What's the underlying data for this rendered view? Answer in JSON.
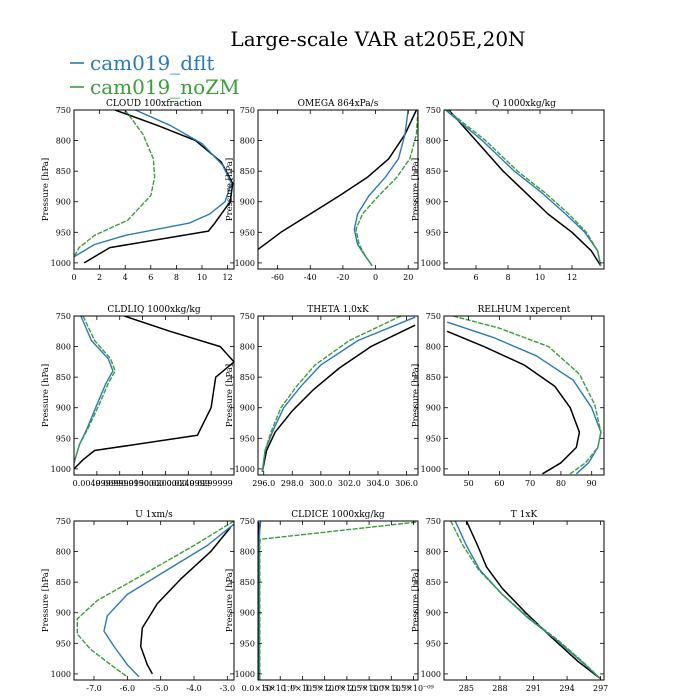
{
  "figure": {
    "title": "Large-scale VAR at205E,20N",
    "legend": [
      {
        "label": "cam019_dflt",
        "color": "#2a7ab8"
      },
      {
        "label": "cam019_noZM",
        "color": "#3a9e3a"
      }
    ],
    "reference_color": "#000000"
  },
  "chart_data": [
    {
      "type": "line",
      "title": "CLOUD  100xfraction",
      "ylabel": "Pressure [hPa]",
      "xlim": [
        0,
        12.5
      ],
      "ylim": [
        1010,
        750
      ],
      "xticks": [
        0,
        2,
        4,
        6,
        8,
        10,
        12
      ],
      "xtick_labels": [
        "0",
        "2",
        "4",
        "6",
        "8",
        "10",
        "12"
      ],
      "yticks": [
        750,
        800,
        850,
        900,
        950,
        1000
      ],
      "series": [
        {
          "name": "",
          "color": "#000000",
          "dashed": false,
          "x": [
            3.2,
            6.5,
            9.5,
            11.5,
            12.4,
            12.2,
            11.0,
            10.5,
            2.8,
            0.8
          ],
          "y": [
            750,
            775,
            800,
            835,
            870,
            900,
            935,
            948,
            975,
            1000
          ]
        },
        {
          "name": "cam019_dflt",
          "color": "#2a7ab8",
          "dashed": false,
          "x": [
            4.8,
            7.5,
            10.0,
            11.6,
            12.3,
            11.8,
            10.6,
            9.0,
            4.0,
            1.6,
            0.0
          ],
          "y": [
            750,
            775,
            805,
            840,
            870,
            900,
            920,
            935,
            955,
            970,
            990
          ]
        },
        {
          "name": "cam019_noZM",
          "color": "#3a9e3a",
          "dashed": true,
          "x": [
            4.0,
            5.4,
            6.2,
            6.3,
            6.0,
            4.2,
            1.6,
            0.4,
            0.0
          ],
          "y": [
            750,
            790,
            830,
            860,
            890,
            930,
            955,
            975,
            990
          ]
        }
      ]
    },
    {
      "type": "line",
      "title": "OMEGA  864xPa/s",
      "ylabel": "Pressure [hPa]",
      "xlim": [
        -72,
        26
      ],
      "ylim": [
        1010,
        750
      ],
      "xticks": [
        -60,
        -40,
        -20,
        0,
        20
      ],
      "xtick_labels": [
        "-60",
        "-40",
        "-20",
        "0",
        "20"
      ],
      "yticks": [
        750,
        800,
        850,
        900,
        950,
        1000
      ],
      "series": [
        {
          "name": "",
          "color": "#000000",
          "dashed": false,
          "x": [
            25,
            18,
            8,
            -5,
            -22,
            -40,
            -58,
            -72
          ],
          "y": [
            750,
            790,
            830,
            860,
            890,
            920,
            950,
            978
          ]
        },
        {
          "name": "cam019_dflt",
          "color": "#2a7ab8",
          "dashed": false,
          "x": [
            20,
            18,
            14,
            6,
            -4,
            -11,
            -13,
            -11,
            -6,
            -2
          ],
          "y": [
            750,
            790,
            830,
            860,
            890,
            920,
            945,
            970,
            990,
            1005
          ]
        },
        {
          "name": "cam019_noZM",
          "color": "#3a9e3a",
          "dashed": true,
          "x": [
            26,
            25,
            21,
            13,
            2,
            -8,
            -12,
            -10,
            -6,
            -2
          ],
          "y": [
            750,
            790,
            830,
            860,
            890,
            920,
            945,
            970,
            990,
            1005
          ]
        }
      ]
    },
    {
      "type": "line",
      "title": "Q  1000xkg/kg",
      "ylabel": "Pressure [hPa]",
      "xlim": [
        4,
        14
      ],
      "ylim": [
        1010,
        750
      ],
      "xticks": [
        6,
        8,
        10,
        12
      ],
      "xtick_labels": [
        "6",
        "8",
        "10",
        "12"
      ],
      "yticks": [
        750,
        800,
        850,
        900,
        950,
        1000
      ],
      "series": [
        {
          "name": "",
          "color": "#000000",
          "dashed": false,
          "x": [
            4.3,
            6.0,
            7.7,
            9.1,
            10.5,
            12.0,
            13.2,
            13.8
          ],
          "y": [
            750,
            800,
            850,
            885,
            920,
            950,
            980,
            1005
          ]
        },
        {
          "name": "cam019_dflt",
          "color": "#2a7ab8",
          "dashed": false,
          "x": [
            4.1,
            6.4,
            8.4,
            10.1,
            11.6,
            12.8,
            13.6,
            13.8
          ],
          "y": [
            750,
            800,
            850,
            885,
            920,
            950,
            980,
            1005
          ]
        },
        {
          "name": "cam019_noZM",
          "color": "#3a9e3a",
          "dashed": true,
          "x": [
            4.2,
            6.6,
            8.6,
            10.3,
            11.8,
            12.9,
            13.6,
            13.8
          ],
          "y": [
            750,
            800,
            850,
            885,
            920,
            950,
            980,
            1005
          ]
        }
      ]
    },
    {
      "type": "line",
      "title": "CLDLIQ  1000xkg/kg",
      "ylabel": "Pressure [hPa]",
      "xlim": [
        0,
        0.035
      ],
      "ylim": [
        1010,
        750
      ],
      "xticks": [
        0.005,
        0.01,
        0.015,
        0.02,
        0.025,
        0.03
      ],
      "xtick_labels": [
        "0.00499999",
        "0.00999999",
        "0.0150000",
        "0.0200000",
        "0.0249999",
        "0.0299999"
      ],
      "yticks": [
        750,
        800,
        850,
        900,
        950,
        1000
      ],
      "series": [
        {
          "name": "",
          "color": "#000000",
          "dashed": false,
          "x": [
            0.011,
            0.021,
            0.032,
            0.035,
            0.031,
            0.03,
            0.027,
            0.0045,
            0.002,
            0.0
          ],
          "y": [
            750,
            775,
            800,
            825,
            850,
            900,
            945,
            970,
            985,
            1000
          ]
        },
        {
          "name": "cam019_dflt",
          "color": "#2a7ab8",
          "dashed": false,
          "x": [
            0.0015,
            0.0038,
            0.0075,
            0.0085,
            0.007,
            0.005,
            0.0028,
            0.0012,
            0.0
          ],
          "y": [
            750,
            790,
            820,
            840,
            860,
            895,
            935,
            960,
            990
          ]
        },
        {
          "name": "cam019_noZM",
          "color": "#3a9e3a",
          "dashed": true,
          "x": [
            0.002,
            0.0045,
            0.008,
            0.009,
            0.0075,
            0.0055,
            0.003,
            0.0012,
            0.0
          ],
          "y": [
            750,
            790,
            820,
            840,
            860,
            895,
            935,
            960,
            990
          ]
        }
      ]
    },
    {
      "type": "line",
      "title": "THETA  1.0xK",
      "ylabel": "Pressure [hPa]",
      "xlim": [
        295.6,
        306.8
      ],
      "ylim": [
        1010,
        750
      ],
      "xticks": [
        296.0,
        298.0,
        300.0,
        302.0,
        304.0,
        306.0
      ],
      "xtick_labels": [
        "296.0",
        "298.0",
        "300.0",
        "302.0",
        "304.0",
        "306.0"
      ],
      "yticks": [
        750,
        800,
        850,
        900,
        950,
        1000
      ],
      "series": [
        {
          "name": "",
          "color": "#000000",
          "dashed": false,
          "x": [
            306.6,
            303.5,
            301.3,
            299.5,
            298.0,
            296.8,
            296.2,
            295.9
          ],
          "y": [
            765,
            800,
            835,
            870,
            905,
            940,
            970,
            1005
          ]
        },
        {
          "name": "cam019_dflt",
          "color": "#2a7ab8",
          "dashed": false,
          "x": [
            306.6,
            302.6,
            300.0,
            298.6,
            297.4,
            296.6,
            296.1,
            295.9
          ],
          "y": [
            752,
            790,
            830,
            865,
            900,
            940,
            970,
            1005
          ]
        },
        {
          "name": "cam019_noZM",
          "color": "#3a9e3a",
          "dashed": true,
          "x": [
            305.6,
            302.0,
            299.6,
            298.3,
            297.2,
            296.5,
            296.1,
            295.9
          ],
          "y": [
            750,
            790,
            830,
            865,
            900,
            940,
            970,
            1005
          ]
        }
      ]
    },
    {
      "type": "line",
      "title": "RELHUM  1xpercent",
      "ylabel": "Pressure [hPa]",
      "xlim": [
        42,
        94
      ],
      "ylim": [
        1010,
        750
      ],
      "xticks": [
        50,
        60,
        70,
        80,
        90
      ],
      "xtick_labels": [
        "50",
        "60",
        "70",
        "80",
        "90"
      ],
      "yticks": [
        750,
        800,
        850,
        900,
        950,
        1000
      ],
      "series": [
        {
          "name": "",
          "color": "#000000",
          "dashed": false,
          "x": [
            43,
            55,
            68,
            78,
            83,
            86,
            85,
            80,
            74
          ],
          "y": [
            775,
            800,
            830,
            865,
            900,
            940,
            965,
            990,
            1008
          ]
        },
        {
          "name": "cam019_dflt",
          "color": "#2a7ab8",
          "dashed": false,
          "x": [
            43,
            58,
            72,
            84,
            90,
            93,
            92,
            89,
            85
          ],
          "y": [
            760,
            785,
            815,
            855,
            900,
            940,
            965,
            990,
            1008
          ]
        },
        {
          "name": "cam019_noZM",
          "color": "#3a9e3a",
          "dashed": true,
          "x": [
            45,
            60,
            76,
            86,
            91,
            93,
            92,
            88,
            83
          ],
          "y": [
            750,
            770,
            800,
            845,
            895,
            940,
            965,
            990,
            1008
          ]
        }
      ]
    },
    {
      "type": "line",
      "title": "U  1xm/s",
      "ylabel": "Pressure [hPa]",
      "xlim": [
        -7.6,
        -2.8
      ],
      "ylim": [
        1010,
        750
      ],
      "xticks": [
        -7.0,
        -6.0,
        -5.0,
        -4.0,
        -3.0
      ],
      "xtick_labels": [
        "-7.0",
        "-6.0",
        "-5.0",
        "-4.0",
        "-3.0"
      ],
      "yticks": [
        750,
        800,
        850,
        900,
        950,
        1000
      ],
      "series": [
        {
          "name": "",
          "color": "#000000",
          "dashed": false,
          "x": [
            -2.9,
            -3.5,
            -4.4,
            -5.1,
            -5.55,
            -5.6,
            -5.4,
            -5.25
          ],
          "y": [
            760,
            800,
            845,
            885,
            925,
            955,
            985,
            1000
          ]
        },
        {
          "name": "cam019_dflt",
          "color": "#2a7ab8",
          "dashed": false,
          "x": [
            -2.8,
            -3.6,
            -4.8,
            -6.0,
            -6.6,
            -6.7,
            -6.4,
            -6.0,
            -5.65
          ],
          "y": [
            755,
            790,
            830,
            870,
            905,
            930,
            955,
            985,
            1005
          ]
        },
        {
          "name": "cam019_noZM",
          "color": "#3a9e3a",
          "dashed": true,
          "x": [
            -2.8,
            -4.0,
            -5.6,
            -6.9,
            -7.5,
            -7.5,
            -7.1,
            -6.5,
            -6.0
          ],
          "y": [
            750,
            790,
            840,
            880,
            910,
            935,
            960,
            985,
            1005
          ]
        }
      ]
    },
    {
      "type": "line",
      "title": "CLDICE  1000xkg/kg",
      "ylabel": "Pressure [hPa]",
      "xlim": [
        0,
        3.6
      ],
      "ylim": [
        1010,
        750
      ],
      "xticks": [
        0,
        0.5,
        1.0,
        1.5,
        2.0,
        2.5,
        3.0,
        3.5
      ],
      "xtick_labels": [
        "0.0×10⁰",
        "5×10⁻¹⁰",
        "1.0×10⁻⁰⁹",
        "1.5×10⁻⁰⁹",
        "2.0×10⁻⁰⁹",
        "2.5×10⁻⁰⁹",
        "3.0×10⁻⁰⁹",
        "3.5×10⁻⁰⁹"
      ],
      "yticks": [
        750,
        800,
        850,
        900,
        950,
        1000
      ],
      "series": [
        {
          "name": "",
          "color": "#000000",
          "dashed": false,
          "x": [
            0.02,
            0.02
          ],
          "y": [
            752,
            1010
          ]
        },
        {
          "name": "cam019_dflt",
          "color": "#2a7ab8",
          "dashed": false,
          "x": [
            0.06,
            0.04,
            0.03,
            0.03
          ],
          "y": [
            750,
            765,
            780,
            1010
          ]
        },
        {
          "name": "cam019_noZM",
          "color": "#3a9e3a",
          "dashed": true,
          "x": [
            3.55,
            0.05,
            0.04,
            0.04
          ],
          "y": [
            752,
            780,
            790,
            1010
          ]
        }
      ]
    },
    {
      "type": "line",
      "title": "T  1xK",
      "ylabel": "Pressure [hPa]",
      "xlim": [
        283,
        297.3
      ],
      "ylim": [
        1010,
        750
      ],
      "xticks": [
        285,
        288,
        291,
        294,
        297
      ],
      "xtick_labels": [
        "285",
        "288",
        "291",
        "294",
        "297"
      ],
      "yticks": [
        750,
        800,
        850,
        900,
        950,
        1000
      ],
      "series": [
        {
          "name": "",
          "color": "#000000",
          "dashed": false,
          "x": [
            285.0,
            286.0,
            286.8,
            288.2,
            290.3,
            292.6,
            295.0,
            297.0
          ],
          "y": [
            750,
            790,
            825,
            860,
            900,
            940,
            980,
            1008
          ]
        },
        {
          "name": "cam019_dflt",
          "color": "#2a7ab8",
          "dashed": false,
          "x": [
            284.0,
            285.0,
            286.2,
            288.2,
            290.6,
            293.1,
            295.3,
            297.0
          ],
          "y": [
            750,
            790,
            830,
            870,
            910,
            945,
            980,
            1008
          ]
        },
        {
          "name": "cam019_noZM",
          "color": "#3a9e3a",
          "dashed": true,
          "x": [
            283.6,
            284.7,
            286.1,
            288.2,
            290.7,
            293.2,
            295.4,
            297.0
          ],
          "y": [
            750,
            790,
            830,
            870,
            910,
            945,
            980,
            1008
          ]
        }
      ]
    }
  ]
}
